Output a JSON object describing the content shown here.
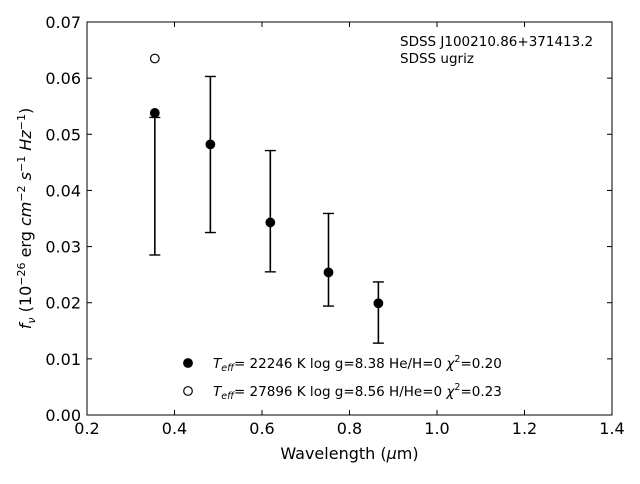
{
  "chart_data": {
    "type": "scatter",
    "title": "",
    "xlabel": "Wavelength (μm)",
    "ylabel": "f_ν (10^-26 erg cm^-2 s^-1 Hz^-1)",
    "xlim": [
      0.2,
      1.4
    ],
    "ylim": [
      0.0,
      0.07
    ],
    "xticks": [
      "0.2",
      "0.4",
      "0.6",
      "0.8",
      "1.0",
      "1.2",
      "1.4"
    ],
    "yticks": [
      "0.00",
      "0.01",
      "0.02",
      "0.03",
      "0.04",
      "0.05",
      "0.06",
      "0.07"
    ],
    "annotation": [
      "SDSS J100210.86+371413.2",
      "SDSS ugriz"
    ],
    "observed": {
      "x": [
        0.355,
        0.482,
        0.619,
        0.752,
        0.866
      ],
      "y_low": [
        0.0285,
        0.0325,
        0.0255,
        0.0194,
        0.0128
      ],
      "y_high": [
        0.053,
        0.0603,
        0.0471,
        0.0359,
        0.0237
      ]
    },
    "series": [
      {
        "marker": "filled",
        "label_parts": [
          "T",
          "eff",
          "= 22246 K  log g=8.38  He/H=0  χ",
          "2",
          "=0.20"
        ],
        "x": [
          0.355,
          0.482,
          0.619,
          0.752,
          0.866
        ],
        "y": [
          0.0538,
          0.0482,
          0.0343,
          0.0254,
          0.0199
        ]
      },
      {
        "marker": "open",
        "label_parts": [
          "T",
          "eff",
          "= 27896 K  log g=8.56  H/He=0  χ",
          "2",
          "=0.23"
        ],
        "x": [
          0.355
        ],
        "y": [
          0.0635
        ]
      }
    ]
  }
}
